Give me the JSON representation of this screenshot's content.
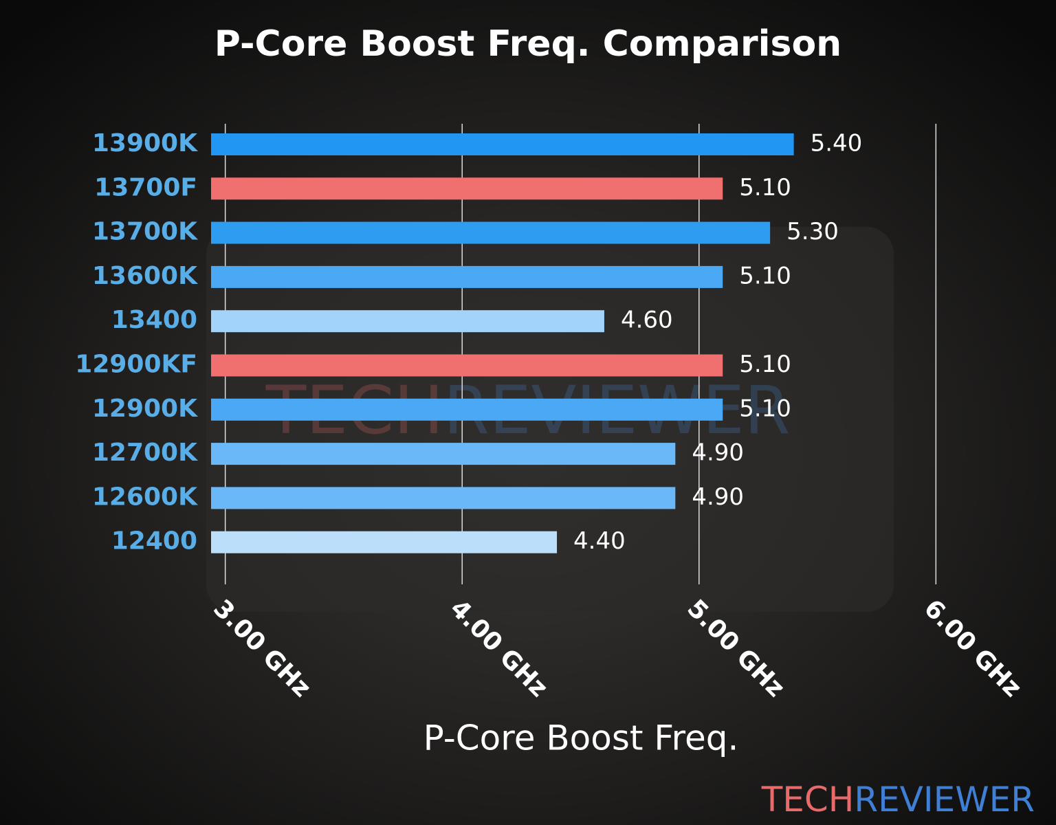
{
  "chart_data": {
    "type": "barh",
    "title": "P-Core Boost Freq. Comparison",
    "x_label": "P-Core Boost Freq.",
    "categories": [
      "13900K",
      "13700F",
      "13700K",
      "13600K",
      "13400",
      "12900KF",
      "12900K",
      "12700K",
      "12600K",
      "12400"
    ],
    "values": [
      5.4,
      5.1,
      5.3,
      5.1,
      4.6,
      5.1,
      5.1,
      4.9,
      4.9,
      4.4
    ],
    "value_labels": [
      "5.40",
      "5.10",
      "5.30",
      "5.10",
      "4.60",
      "5.10",
      "5.10",
      "4.90",
      "4.90",
      "4.40"
    ],
    "colors": [
      "#2196f3",
      "#f07070",
      "#2e9cf0",
      "#4aa8f5",
      "#a2d3fa",
      "#f07070",
      "#4aa8f5",
      "#6ab8f7",
      "#6ab8f7",
      "#bbdefb"
    ],
    "xlim": [
      2.94,
      6.06
    ],
    "xticks": [
      {
        "value": 3,
        "label": "3.00 GHz"
      },
      {
        "value": 4,
        "label": "4.00 GHz"
      },
      {
        "value": 5,
        "label": "5.00 GHz"
      },
      {
        "value": 6,
        "label": "6.00 GHz"
      }
    ],
    "grid": true,
    "watermark": [
      "TECH",
      "REVIEWER"
    ]
  }
}
